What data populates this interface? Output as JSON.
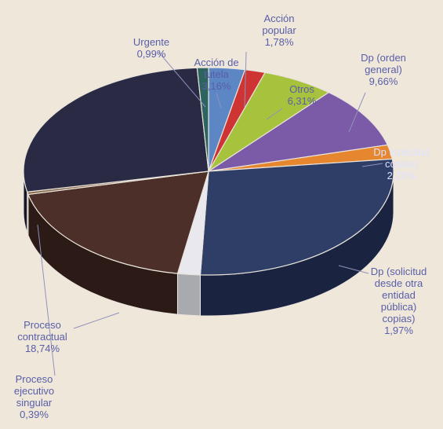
{
  "chart_data": {
    "type": "pie",
    "slices": [
      {
        "label": "Acción de tutela",
        "display": "Acción de\ntutela\n3,16%",
        "value": 3.16,
        "color": "#5c86c4",
        "side": "#2e4a77"
      },
      {
        "label": "Acción popular",
        "display": "Acción\npopular\n1,78%",
        "value": 1.78,
        "color": "#cf3434",
        "side": "#7a1f22"
      },
      {
        "label": "Otros",
        "display": "Otros\n6,31%",
        "value": 6.31,
        "color": "#a7c23d",
        "side": "#5e6e20"
      },
      {
        "label": "Dp (orden general)",
        "display": "Dp (orden\ngeneral)\n9,66%",
        "value": 9.66,
        "color": "#7b5aa8",
        "side": "#473161"
      },
      {
        "label": "Dp (solicitud copias)",
        "display": "Dp (solicitud\n copias)\n2,20%",
        "value": 2.2,
        "color": "#e6862e",
        "side": "#8a4f1b"
      },
      {
        "label": "",
        "display": "",
        "value": 27.6,
        "color": "#2e3e66",
        "side": "#1a2441"
      },
      {
        "label": "Dp (solicitud desde otra entidad pública) copias",
        "display": "Dp (solicitud\ndesde otra\nentidad\npública)\ncopias)\n1,97%",
        "value": 1.97,
        "color": "#e8e8ee",
        "side": "#a9a9b0"
      },
      {
        "label": "Proceso contractual",
        "display": "Proceso\ncontractual\n18,74%",
        "value": 18.74,
        "color": "#4c2f28",
        "side": "#2c1a16"
      },
      {
        "label": "Proceso ejecutivo singular",
        "display": "Proceso\nejecutivo\nsingular\n0,39%",
        "value": 0.39,
        "color": "#8a6a4e",
        "side": "#4e3a2b"
      },
      {
        "label": "",
        "display": "",
        "value": 27.2,
        "color": "#2a2a44",
        "side": "#171727"
      },
      {
        "label": "Urgente",
        "display": "Urgente\n0,99%",
        "value": 0.99,
        "color": "#2e6460",
        "side": "#193a38"
      }
    ]
  }
}
